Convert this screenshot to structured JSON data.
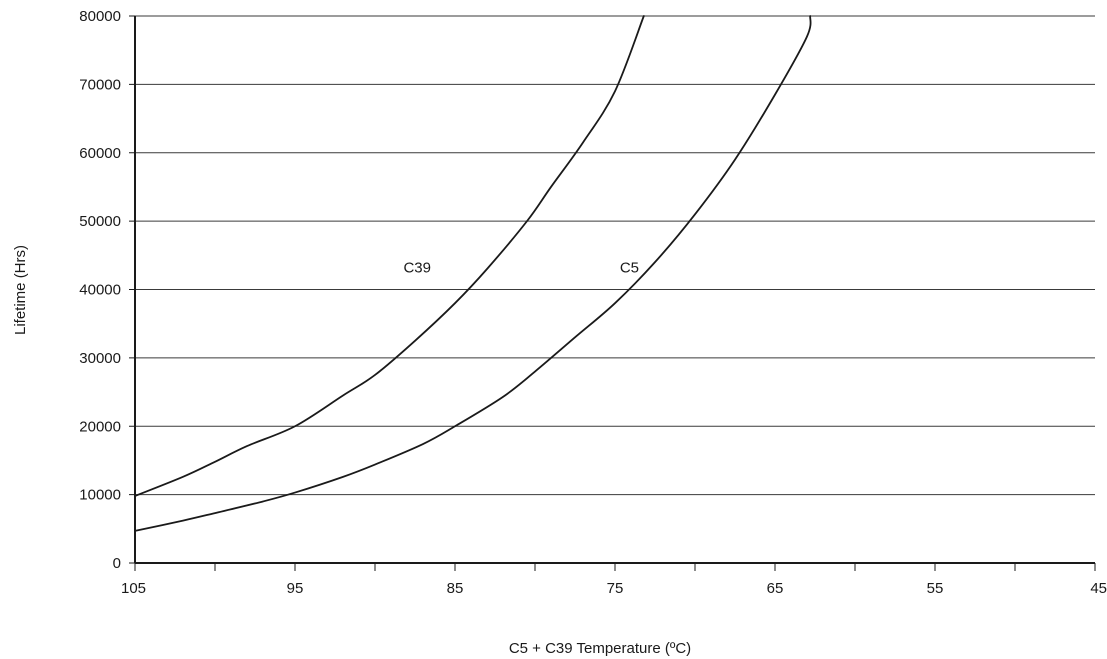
{
  "chart_data": {
    "type": "line",
    "xlabel": "C5 + C39 Temperature (ºC)",
    "ylabel": "Lifetime (Hrs)",
    "x_reversed": true,
    "xlim": [
      105,
      45
    ],
    "ylim": [
      0,
      80000
    ],
    "x_ticks": [
      105,
      95,
      85,
      75,
      65,
      55,
      45
    ],
    "x_minor_ticks": [
      100,
      90,
      80,
      70,
      60,
      50
    ],
    "y_ticks": [
      0,
      10000,
      20000,
      30000,
      40000,
      50000,
      60000,
      70000,
      80000
    ],
    "grid": "horizontal",
    "legend": "none",
    "series": [
      {
        "name": "C39",
        "label_at": [
          86.5,
          42500
        ],
        "color": "#1a1a1a",
        "points": [
          [
            105,
            9800
          ],
          [
            102,
            12600
          ],
          [
            100,
            14800
          ],
          [
            98,
            17100
          ],
          [
            95,
            20000
          ],
          [
            92,
            24500
          ],
          [
            90,
            27500
          ],
          [
            87.5,
            32500
          ],
          [
            85,
            38000
          ],
          [
            83,
            43000
          ],
          [
            80.5,
            50000
          ],
          [
            79,
            55000
          ],
          [
            77,
            61500
          ],
          [
            75,
            69000
          ],
          [
            73.2,
            80000
          ]
        ]
      },
      {
        "name": "C5",
        "label_at": [
          73.5,
          42500
        ],
        "color": "#1a1a1a",
        "points": [
          [
            105,
            4700
          ],
          [
            102,
            6200
          ],
          [
            100,
            7300
          ],
          [
            97,
            9000
          ],
          [
            95,
            10300
          ],
          [
            92,
            12600
          ],
          [
            90,
            14400
          ],
          [
            87,
            17400
          ],
          [
            85,
            20000
          ],
          [
            82,
            24300
          ],
          [
            80,
            28000
          ],
          [
            77.5,
            33000
          ],
          [
            75,
            38000
          ],
          [
            72.5,
            44000
          ],
          [
            70,
            51000
          ],
          [
            67.5,
            59000
          ],
          [
            65,
            68500
          ],
          [
            63,
            77000
          ],
          [
            62.8,
            80000
          ]
        ]
      }
    ]
  }
}
